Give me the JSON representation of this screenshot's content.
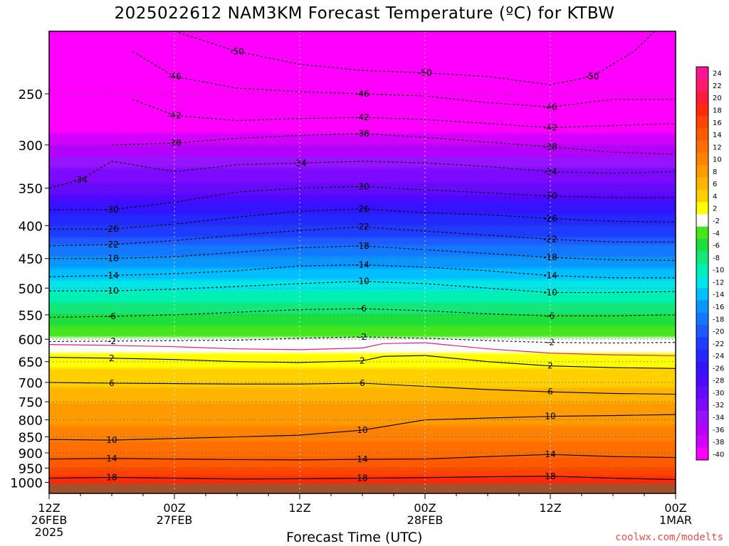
{
  "title": "2025022612 NAM3KM Forecast Temperature (ºC) for KTBW",
  "credit": "coolwx.com/modelts",
  "chart_data": {
    "type": "heatmap",
    "title": "2025022612 NAM3KM Forecast Temperature (ºC) for KTBW",
    "xlabel": "Forecast Time (UTC)",
    "ylabel": "",
    "y_scale": "log",
    "ylim": [
      1040,
      200
    ],
    "y_ticks": [
      250,
      300,
      350,
      400,
      450,
      500,
      550,
      600,
      650,
      700,
      750,
      800,
      850,
      900,
      950,
      1000
    ],
    "x_range_hours": [
      0,
      60
    ],
    "x_ticks": [
      {
        "hour": 0,
        "lines": [
          "12Z",
          "26FEB",
          "2025"
        ]
      },
      {
        "hour": 12,
        "lines": [
          "00Z",
          "27FEB"
        ]
      },
      {
        "hour": 24,
        "lines": [
          "12Z"
        ]
      },
      {
        "hour": 36,
        "lines": [
          "00Z",
          "28FEB"
        ]
      },
      {
        "hour": 48,
        "lines": [
          "12Z"
        ]
      },
      {
        "hour": 60,
        "lines": [
          "00Z",
          "1MAR"
        ]
      }
    ],
    "grid": true,
    "ground_color": "#a0522d",
    "colorbar": {
      "placement": "right",
      "labels": [
        "24",
        "22",
        "20",
        "18",
        "16",
        "14",
        "12",
        "10",
        "8",
        "6",
        "4",
        "2",
        "-2",
        "-4",
        "-6",
        "-8",
        "-10",
        "-12",
        "-14",
        "-16",
        "-18",
        "-20",
        "-22",
        "-24",
        "-26",
        "-28",
        "-30",
        "-32",
        "-34",
        "-36",
        "-38",
        "-40"
      ],
      "colors": [
        "#ff1493",
        "#ff1a6e",
        "#ff1a3c",
        "#ff2a0a",
        "#ff4500",
        "#ff5a00",
        "#ff6e00",
        "#ff8200",
        "#ff9a00",
        "#ffb400",
        "#ffd000",
        "#ffff00",
        "#ffffff",
        "#45e61e",
        "#1ede3c",
        "#14e678",
        "#00f0b4",
        "#00e6e6",
        "#00beff",
        "#0a96ff",
        "#1478ff",
        "#1e5aff",
        "#1e3cff",
        "#2328ff",
        "#3214ff",
        "#4b0aff",
        "#640aff",
        "#7d0aff",
        "#9614ff",
        "#b400ff",
        "#d200ff",
        "#ff00ff"
      ]
    },
    "temperature_profile": [
      {
        "p": 1000,
        "t": 19
      },
      {
        "p": 950,
        "t": 16
      },
      {
        "p": 900,
        "t": 13.5
      },
      {
        "p": 850,
        "t": 11
      },
      {
        "p": 800,
        "t": 9.5
      },
      {
        "p": 750,
        "t": 8
      },
      {
        "p": 700,
        "t": 5.5
      },
      {
        "p": 650,
        "t": 3
      },
      {
        "p": 625,
        "t": 1.5
      },
      {
        "p": 600,
        "t": -2
      },
      {
        "p": 550,
        "t": -6
      },
      {
        "p": 500,
        "t": -10.5
      },
      {
        "p": 450,
        "t": -15.5
      },
      {
        "p": 400,
        "t": -22
      },
      {
        "p": 350,
        "t": -29
      },
      {
        "p": 300,
        "t": -36
      },
      {
        "p": 250,
        "t": -44
      },
      {
        "p": 200,
        "t": -52
      }
    ],
    "contours": [
      {
        "value": 18,
        "label": "18",
        "points": [
          [
            0,
            985
          ],
          [
            6,
            982
          ],
          [
            12,
            985
          ],
          [
            18,
            988
          ],
          [
            24,
            987
          ],
          [
            30,
            985
          ],
          [
            36,
            983
          ],
          [
            42,
            980
          ],
          [
            48,
            978
          ],
          [
            54,
            985
          ],
          [
            60,
            990
          ]
        ]
      },
      {
        "value": 14,
        "label": "14",
        "points": [
          [
            0,
            920
          ],
          [
            6,
            918
          ],
          [
            12,
            920
          ],
          [
            18,
            922
          ],
          [
            24,
            923
          ],
          [
            30,
            921
          ],
          [
            36,
            920
          ],
          [
            42,
            912
          ],
          [
            48,
            905
          ],
          [
            54,
            912
          ],
          [
            60,
            915
          ]
        ]
      },
      {
        "value": 10,
        "label": "10",
        "points": [
          [
            0,
            858
          ],
          [
            6,
            860
          ],
          [
            12,
            855
          ],
          [
            18,
            850
          ],
          [
            24,
            845
          ],
          [
            30,
            830
          ],
          [
            36,
            800
          ],
          [
            42,
            795
          ],
          [
            48,
            790
          ],
          [
            54,
            788
          ],
          [
            60,
            785
          ]
        ]
      },
      {
        "value": 6,
        "label": "6",
        "points": [
          [
            0,
            700
          ],
          [
            6,
            702
          ],
          [
            12,
            703
          ],
          [
            18,
            704
          ],
          [
            24,
            704
          ],
          [
            30,
            702
          ],
          [
            36,
            710
          ],
          [
            42,
            718
          ],
          [
            48,
            724
          ],
          [
            54,
            728
          ],
          [
            60,
            730
          ]
        ]
      },
      {
        "value": 2,
        "label": "2",
        "points": [
          [
            0,
            640
          ],
          [
            6,
            642
          ],
          [
            12,
            645
          ],
          [
            18,
            650
          ],
          [
            24,
            652
          ],
          [
            30,
            648
          ],
          [
            32,
            638
          ],
          [
            36,
            636
          ],
          [
            42,
            650
          ],
          [
            48,
            660
          ],
          [
            54,
            664
          ],
          [
            60,
            666
          ]
        ]
      },
      {
        "value": -2,
        "label": "-2",
        "points": [
          [
            0,
            605
          ],
          [
            6,
            604
          ],
          [
            12,
            603
          ],
          [
            18,
            602
          ],
          [
            24,
            598
          ],
          [
            30,
            595
          ],
          [
            36,
            598
          ],
          [
            42,
            603
          ],
          [
            48,
            607
          ],
          [
            54,
            608
          ],
          [
            60,
            607
          ]
        ]
      },
      {
        "value": -6,
        "label": "-6",
        "points": [
          [
            0,
            555
          ],
          [
            6,
            553
          ],
          [
            12,
            550
          ],
          [
            18,
            545
          ],
          [
            24,
            540
          ],
          [
            30,
            538
          ],
          [
            36,
            542
          ],
          [
            42,
            548
          ],
          [
            48,
            552
          ],
          [
            54,
            552
          ],
          [
            60,
            550
          ]
        ]
      },
      {
        "value": -10,
        "label": "-10",
        "points": [
          [
            0,
            505
          ],
          [
            6,
            505
          ],
          [
            12,
            502
          ],
          [
            18,
            497
          ],
          [
            24,
            492
          ],
          [
            30,
            488
          ],
          [
            36,
            492
          ],
          [
            42,
            500
          ],
          [
            48,
            508
          ],
          [
            54,
            508
          ],
          [
            60,
            506
          ]
        ]
      },
      {
        "value": -14,
        "label": "-14",
        "points": [
          [
            0,
            480
          ],
          [
            6,
            478
          ],
          [
            12,
            475
          ],
          [
            18,
            470
          ],
          [
            24,
            462
          ],
          [
            30,
            460
          ],
          [
            36,
            464
          ],
          [
            42,
            470
          ],
          [
            48,
            478
          ],
          [
            54,
            482
          ],
          [
            60,
            482
          ]
        ]
      },
      {
        "value": -18,
        "label": "-18",
        "points": [
          [
            0,
            450
          ],
          [
            6,
            450
          ],
          [
            12,
            447
          ],
          [
            18,
            440
          ],
          [
            24,
            433
          ],
          [
            30,
            430
          ],
          [
            36,
            436
          ],
          [
            42,
            442
          ],
          [
            48,
            448
          ],
          [
            54,
            452
          ],
          [
            60,
            453
          ]
        ]
      },
      {
        "value": -22,
        "label": "-22",
        "points": [
          [
            0,
            430
          ],
          [
            6,
            428
          ],
          [
            12,
            422
          ],
          [
            18,
            414
          ],
          [
            24,
            407
          ],
          [
            30,
            402
          ],
          [
            36,
            408
          ],
          [
            42,
            414
          ],
          [
            48,
            420
          ],
          [
            54,
            424
          ],
          [
            60,
            424
          ]
        ]
      },
      {
        "value": -26,
        "label": "-26",
        "points": [
          [
            0,
            405
          ],
          [
            6,
            405
          ],
          [
            12,
            398
          ],
          [
            18,
            388
          ],
          [
            24,
            380
          ],
          [
            30,
            377
          ],
          [
            36,
            382
          ],
          [
            42,
            385
          ],
          [
            48,
            390
          ],
          [
            54,
            394
          ],
          [
            60,
            395
          ]
        ]
      },
      {
        "value": -30,
        "label": "-30",
        "points": [
          [
            0,
            378
          ],
          [
            6,
            378
          ],
          [
            12,
            368
          ],
          [
            18,
            355
          ],
          [
            24,
            350
          ],
          [
            30,
            348
          ],
          [
            36,
            352
          ],
          [
            42,
            356
          ],
          [
            48,
            360
          ],
          [
            54,
            362
          ],
          [
            60,
            362
          ]
        ]
      },
      {
        "value": -34,
        "label": "-34",
        "points": [
          [
            0,
            350
          ],
          [
            3,
            340
          ],
          [
            6,
            318
          ],
          [
            12,
            330
          ],
          [
            18,
            322
          ],
          [
            24,
            320
          ],
          [
            30,
            318
          ],
          [
            36,
            320
          ],
          [
            42,
            324
          ],
          [
            48,
            330
          ],
          [
            54,
            332
          ],
          [
            60,
            330
          ]
        ]
      },
      {
        "value": -38,
        "label": "-38",
        "points": [
          [
            6,
            300
          ],
          [
            12,
            298
          ],
          [
            18,
            293
          ],
          [
            24,
            290
          ],
          [
            30,
            288
          ],
          [
            36,
            292
          ],
          [
            42,
            297
          ],
          [
            48,
            302
          ],
          [
            54,
            308
          ],
          [
            60,
            310
          ]
        ]
      },
      {
        "value": -42,
        "label": "-42",
        "points": [
          [
            8,
            255
          ],
          [
            12,
            270
          ],
          [
            18,
            275
          ],
          [
            24,
            273
          ],
          [
            30,
            272
          ],
          [
            36,
            274
          ],
          [
            42,
            278
          ],
          [
            48,
            282
          ],
          [
            54,
            280
          ],
          [
            60,
            278
          ]
        ]
      },
      {
        "value": -46,
        "label": "-46",
        "points": [
          [
            8,
            215
          ],
          [
            12,
            235
          ],
          [
            18,
            245
          ],
          [
            24,
            248
          ],
          [
            30,
            250
          ],
          [
            36,
            252
          ],
          [
            42,
            258
          ],
          [
            48,
            262
          ],
          [
            54,
            255
          ],
          [
            60,
            255
          ]
        ]
      },
      {
        "value": -50,
        "label": "-50",
        "points": [
          [
            12,
            200
          ],
          [
            18,
            215
          ],
          [
            24,
            225
          ],
          [
            30,
            230
          ],
          [
            36,
            232
          ],
          [
            42,
            235
          ],
          [
            48,
            242
          ],
          [
            52,
            235
          ],
          [
            56,
            215
          ],
          [
            58,
            200
          ]
        ]
      }
    ]
  }
}
